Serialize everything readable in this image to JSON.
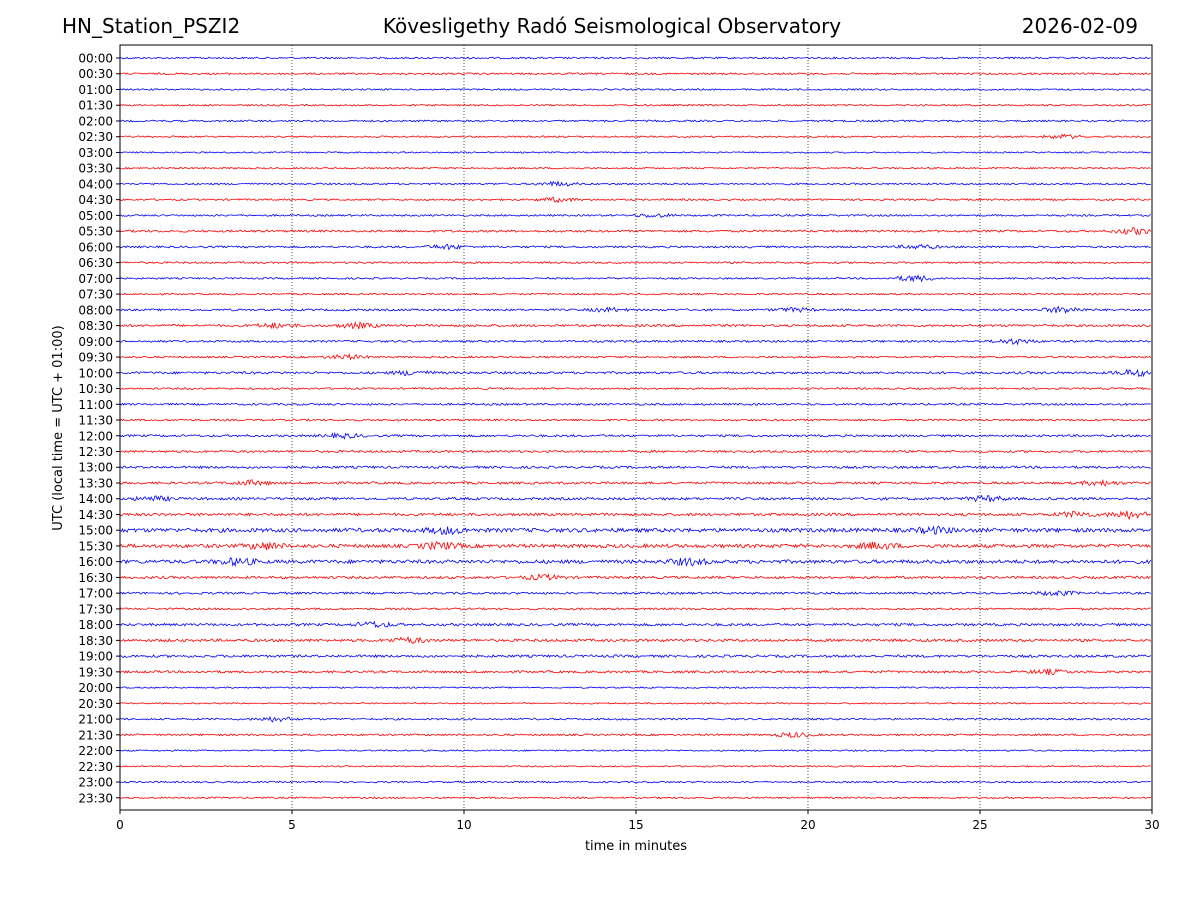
{
  "header": {
    "station": "HN_Station_PSZI2",
    "observatory": "Kövesligethy Radó Seismological Observatory",
    "date": "2026-02-09"
  },
  "colors": {
    "odd_trace": "#0000ff",
    "even_trace": "#ff0000",
    "grid": "#000000",
    "axes": "#000000"
  },
  "chart_data": {
    "type": "line",
    "title": "Kövesligethy Radó Seismological Observatory",
    "xlabel": "time in minutes",
    "ylabel": "UTC (local time = UTC + 01:00)",
    "xlim": [
      0,
      30
    ],
    "x_ticks": [
      0,
      5,
      10,
      15,
      20,
      25,
      30
    ],
    "grid": "vertical dotted lines at x ticks",
    "row_labels": [
      "00:00",
      "00:30",
      "01:00",
      "01:30",
      "02:00",
      "02:30",
      "03:00",
      "03:30",
      "04:00",
      "04:30",
      "05:00",
      "05:30",
      "06:00",
      "06:30",
      "07:00",
      "07:30",
      "08:00",
      "08:30",
      "09:00",
      "09:30",
      "10:00",
      "10:30",
      "11:00",
      "11:30",
      "12:00",
      "12:30",
      "13:00",
      "13:30",
      "14:00",
      "14:30",
      "15:00",
      "15:30",
      "16:00",
      "16:30",
      "17:00",
      "17:30",
      "18:00",
      "18:30",
      "19:00",
      "19:30",
      "20:00",
      "20:30",
      "21:00",
      "21:30",
      "22:00",
      "22:30",
      "23:00",
      "23:30"
    ],
    "trace_colors": [
      "blue",
      "red"
    ],
    "noise_level": [
      1.0,
      1.0,
      0.9,
      0.9,
      1.0,
      0.9,
      0.8,
      0.9,
      1.0,
      1.0,
      1.0,
      1.2,
      1.1,
      1.0,
      0.9,
      0.9,
      1.1,
      1.3,
      1.1,
      1.0,
      1.3,
      1.0,
      1.1,
      1.1,
      1.2,
      1.2,
      1.3,
      1.3,
      1.4,
      1.5,
      2.2,
      2.0,
      2.0,
      1.4,
      1.2,
      1.1,
      1.4,
      1.5,
      1.4,
      1.3,
      0.8,
      0.8,
      1.0,
      1.0,
      0.8,
      0.8,
      0.9,
      0.9
    ],
    "events": [
      {
        "row": 5,
        "x": 27.4,
        "amp": 2.0
      },
      {
        "row": 8,
        "x": 12.7,
        "amp": 2.0
      },
      {
        "row": 9,
        "x": 12.7,
        "amp": 2.0
      },
      {
        "row": 10,
        "x": 15.5,
        "amp": 1.8
      },
      {
        "row": 11,
        "x": 29.5,
        "amp": 3.0
      },
      {
        "row": 12,
        "x": 9.5,
        "amp": 2.0
      },
      {
        "row": 12,
        "x": 23.2,
        "amp": 2.0
      },
      {
        "row": 14,
        "x": 23.1,
        "amp": 3.0
      },
      {
        "row": 16,
        "x": 14.2,
        "amp": 1.8
      },
      {
        "row": 16,
        "x": 19.6,
        "amp": 1.8
      },
      {
        "row": 16,
        "x": 27.4,
        "amp": 3.0
      },
      {
        "row": 17,
        "x": 4.5,
        "amp": 2.0
      },
      {
        "row": 17,
        "x": 6.9,
        "amp": 2.5
      },
      {
        "row": 18,
        "x": 26.0,
        "amp": 2.5
      },
      {
        "row": 19,
        "x": 6.6,
        "amp": 2.2
      },
      {
        "row": 20,
        "x": 8.5,
        "amp": 2.2
      },
      {
        "row": 20,
        "x": 29.5,
        "amp": 3.0
      },
      {
        "row": 24,
        "x": 6.5,
        "amp": 2.0
      },
      {
        "row": 27,
        "x": 3.8,
        "amp": 2.2
      },
      {
        "row": 27,
        "x": 28.5,
        "amp": 2.2
      },
      {
        "row": 28,
        "x": 1.0,
        "amp": 2.0
      },
      {
        "row": 28,
        "x": 25.2,
        "amp": 2.5
      },
      {
        "row": 29,
        "x": 27.8,
        "amp": 2.5
      },
      {
        "row": 29,
        "x": 29.3,
        "amp": 3.5
      },
      {
        "row": 30,
        "x": 9.5,
        "amp": 3.0
      },
      {
        "row": 30,
        "x": 23.7,
        "amp": 2.5
      },
      {
        "row": 31,
        "x": 4.2,
        "amp": 3.0
      },
      {
        "row": 31,
        "x": 9.3,
        "amp": 3.0
      },
      {
        "row": 31,
        "x": 22.0,
        "amp": 3.0
      },
      {
        "row": 32,
        "x": 3.4,
        "amp": 3.0
      },
      {
        "row": 32,
        "x": 16.5,
        "amp": 2.8
      },
      {
        "row": 33,
        "x": 12.3,
        "amp": 2.2
      },
      {
        "row": 34,
        "x": 27.2,
        "amp": 2.2
      },
      {
        "row": 36,
        "x": 7.4,
        "amp": 2.5
      },
      {
        "row": 37,
        "x": 8.4,
        "amp": 2.5
      },
      {
        "row": 39,
        "x": 27.0,
        "amp": 2.0
      },
      {
        "row": 42,
        "x": 4.5,
        "amp": 2.2
      },
      {
        "row": 43,
        "x": 19.6,
        "amp": 2.2
      }
    ]
  }
}
